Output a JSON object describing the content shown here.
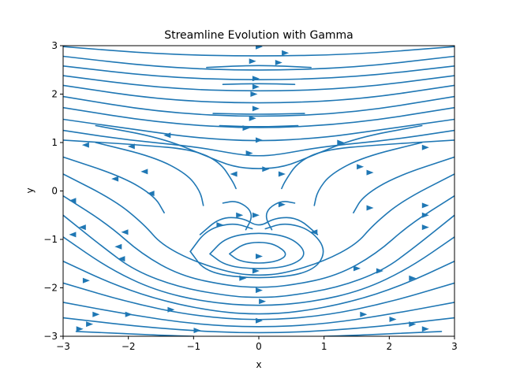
{
  "chart_data": {
    "type": "streamplot",
    "title": "Streamline Evolution with Gamma",
    "xlabel": "x",
    "ylabel": "y",
    "xlim": [
      -3,
      3
    ],
    "ylim": [
      -3,
      3
    ],
    "xticks": [
      -3,
      -2,
      -1,
      0,
      1,
      2,
      3
    ],
    "yticks": [
      -3,
      -2,
      -1,
      0,
      1,
      2,
      3
    ],
    "xtick_labels": [
      "−3",
      "−2",
      "−1",
      "0",
      "1",
      "2",
      "3"
    ],
    "ytick_labels": [
      "−3",
      "−2",
      "−1",
      "0",
      "1",
      "2",
      "3"
    ],
    "color": "#1f77b4",
    "grid": false,
    "field_description": "uniform rightward flow past a vortex near (0,-1.3)",
    "streamlines": [
      [
        [
          -3,
          2.98
        ],
        [
          -1.5,
          2.82
        ],
        [
          0,
          2.78
        ],
        [
          1.5,
          2.82
        ],
        [
          3,
          2.98
        ]
      ],
      [
        [
          -3,
          2.78
        ],
        [
          -1.5,
          2.55
        ],
        [
          0,
          2.48
        ],
        [
          1.5,
          2.55
        ],
        [
          3,
          2.78
        ]
      ],
      [
        [
          -3,
          2.58
        ],
        [
          -1.5,
          2.35
        ],
        [
          0,
          2.28
        ],
        [
          1.5,
          2.35
        ],
        [
          3,
          2.58
        ]
      ],
      [
        [
          -3,
          2.38
        ],
        [
          -1.5,
          2.12
        ],
        [
          0,
          2.05
        ],
        [
          1.5,
          2.12
        ],
        [
          3,
          2.38
        ]
      ],
      [
        [
          -3,
          2.18
        ],
        [
          -1.5,
          1.88
        ],
        [
          0,
          1.8
        ],
        [
          1.5,
          1.88
        ],
        [
          3,
          2.18
        ]
      ],
      [
        [
          -3,
          1.95
        ],
        [
          -1.5,
          1.62
        ],
        [
          0,
          1.52
        ],
        [
          1.5,
          1.62
        ],
        [
          3,
          1.95
        ]
      ],
      [
        [
          -3,
          1.72
        ],
        [
          -1.5,
          1.4
        ],
        [
          0,
          1.28
        ],
        [
          1.5,
          1.4
        ],
        [
          3,
          1.72
        ]
      ],
      [
        [
          -3,
          1.48
        ],
        [
          -1.8,
          1.25
        ],
        [
          -1,
          1.1
        ],
        [
          0,
          1.02
        ],
        [
          1,
          1.1
        ],
        [
          1.8,
          1.25
        ],
        [
          3,
          1.48
        ]
      ],
      [
        [
          -3,
          1.25
        ],
        [
          -2,
          1.05
        ],
        [
          -1,
          0.92
        ],
        [
          -0.3,
          0.75
        ],
        [
          0,
          0.72
        ],
        [
          0.3,
          0.75
        ],
        [
          1,
          0.92
        ],
        [
          2,
          1.05
        ],
        [
          3,
          1.25
        ]
      ],
      [
        [
          -2.5,
          1.35
        ],
        [
          -1.5,
          1.1
        ],
        [
          -0.8,
          0.72
        ],
        [
          -0.4,
          0.5
        ],
        [
          0,
          0.45
        ],
        [
          0.4,
          0.5
        ],
        [
          0.8,
          0.72
        ],
        [
          1.5,
          1.1
        ],
        [
          2.5,
          1.35
        ]
      ],
      [
        [
          -3,
          1.05
        ],
        [
          -1.8,
          0.95
        ],
        [
          -1.0,
          0.85
        ],
        [
          -0.6,
          0.6
        ],
        [
          -0.4,
          0.2
        ],
        [
          -0.35,
          0.05
        ]
      ],
      [
        [
          0.35,
          0.05
        ],
        [
          0.4,
          0.2
        ],
        [
          0.6,
          0.6
        ],
        [
          1.0,
          0.85
        ],
        [
          1.8,
          0.95
        ],
        [
          3,
          1.05
        ]
      ],
      [
        [
          -2.5,
          1.0
        ],
        [
          -1.6,
          0.7
        ],
        [
          -1.1,
          0.35
        ],
        [
          -0.9,
          0.0
        ],
        [
          -0.85,
          -0.3
        ]
      ],
      [
        [
          0.85,
          -0.3
        ],
        [
          0.9,
          0.0
        ],
        [
          1.1,
          0.35
        ],
        [
          1.6,
          0.7
        ],
        [
          2.5,
          1.0
        ]
      ],
      [
        [
          -3,
          0.7
        ],
        [
          -2.1,
          0.3
        ],
        [
          -1.6,
          -0.1
        ],
        [
          -1.45,
          -0.45
        ]
      ],
      [
        [
          1.45,
          -0.45
        ],
        [
          1.6,
          -0.1
        ],
        [
          2.1,
          0.3
        ],
        [
          3,
          0.7
        ]
      ],
      [
        [
          -3,
          0.35
        ],
        [
          -2.2,
          -0.2
        ],
        [
          -1.75,
          -0.7
        ],
        [
          -1.5,
          -1.1
        ],
        [
          -1.0,
          -1.45
        ],
        [
          -0.4,
          -1.7
        ],
        [
          0,
          -1.75
        ],
        [
          0.4,
          -1.7
        ],
        [
          1.0,
          -1.45
        ],
        [
          1.5,
          -1.1
        ],
        [
          1.75,
          -0.7
        ],
        [
          2.2,
          -0.2
        ],
        [
          3,
          0.35
        ]
      ],
      [
        [
          -3,
          -0.1
        ],
        [
          -2.3,
          -0.7
        ],
        [
          -1.8,
          -1.3
        ],
        [
          -1.2,
          -1.75
        ],
        [
          -0.5,
          -1.95
        ],
        [
          0,
          -2.0
        ],
        [
          0.5,
          -1.95
        ],
        [
          1.2,
          -1.75
        ],
        [
          1.8,
          -1.3
        ],
        [
          2.3,
          -0.7
        ],
        [
          3,
          -0.1
        ]
      ],
      [
        [
          -3,
          -0.5
        ],
        [
          -2.4,
          -1.15
        ],
        [
          -1.9,
          -1.65
        ],
        [
          -1.2,
          -2.0
        ],
        [
          -0.4,
          -2.18
        ],
        [
          0,
          -2.2
        ],
        [
          0.4,
          -2.18
        ],
        [
          1.2,
          -2.0
        ],
        [
          1.9,
          -1.65
        ],
        [
          2.4,
          -1.15
        ],
        [
          3,
          -0.5
        ]
      ],
      [
        [
          -3,
          -0.95
        ],
        [
          -2.3,
          -1.6
        ],
        [
          -1.6,
          -2.05
        ],
        [
          -0.8,
          -2.3
        ],
        [
          0,
          -2.38
        ],
        [
          0.8,
          -2.3
        ],
        [
          1.6,
          -2.05
        ],
        [
          2.3,
          -1.6
        ],
        [
          3,
          -0.95
        ]
      ],
      [
        [
          -3,
          -1.45
        ],
        [
          -2.2,
          -1.95
        ],
        [
          -1.4,
          -2.3
        ],
        [
          -0.6,
          -2.5
        ],
        [
          0,
          -2.55
        ],
        [
          0.6,
          -2.5
        ],
        [
          1.4,
          -2.3
        ],
        [
          2.2,
          -1.95
        ],
        [
          3,
          -1.45
        ]
      ],
      [
        [
          -3,
          -1.9
        ],
        [
          -2.0,
          -2.3
        ],
        [
          -1.0,
          -2.58
        ],
        [
          0,
          -2.68
        ],
        [
          1.0,
          -2.58
        ],
        [
          2.0,
          -2.3
        ],
        [
          3,
          -1.9
        ]
      ],
      [
        [
          -3,
          -2.3
        ],
        [
          -2.0,
          -2.55
        ],
        [
          -1.0,
          -2.75
        ],
        [
          0,
          -2.82
        ],
        [
          1.0,
          -2.75
        ],
        [
          2.0,
          -2.55
        ],
        [
          3,
          -2.3
        ]
      ],
      [
        [
          -3,
          -2.62
        ],
        [
          -1.5,
          -2.85
        ],
        [
          0,
          -2.95
        ],
        [
          1.5,
          -2.85
        ],
        [
          3,
          -2.62
        ]
      ],
      [
        [
          -2.8,
          -2.9
        ],
        [
          -1.5,
          -2.98
        ],
        [
          -1.0,
          -3.0
        ]
      ],
      [
        [
          1.0,
          -3.0
        ],
        [
          1.5,
          -2.98
        ],
        [
          2.8,
          -2.9
        ]
      ],
      [
        [
          -0.55,
          -0.25
        ],
        [
          -0.35,
          -0.2
        ],
        [
          -0.15,
          -0.35
        ],
        [
          -0.1,
          -0.55
        ],
        [
          -0.2,
          -0.8
        ]
      ],
      [
        [
          0.55,
          -0.25
        ],
        [
          0.35,
          -0.2
        ],
        [
          0.15,
          -0.35
        ],
        [
          0.1,
          -0.55
        ],
        [
          0.2,
          -0.8
        ]
      ],
      [
        [
          -0.9,
          -0.9
        ],
        [
          -0.6,
          -0.55
        ],
        [
          -0.25,
          -0.55
        ],
        [
          0,
          -0.75
        ],
        [
          0.25,
          -0.55
        ],
        [
          0.6,
          -0.55
        ],
        [
          0.9,
          -0.9
        ]
      ],
      [
        [
          -0.45,
          -1.3
        ],
        [
          -0.25,
          -1.1
        ],
        [
          0,
          -1.05
        ],
        [
          0.25,
          -1.1
        ],
        [
          0.45,
          -1.3
        ],
        [
          0.3,
          -1.45
        ],
        [
          0,
          -1.5
        ],
        [
          -0.3,
          -1.45
        ],
        [
          -0.45,
          -1.3
        ]
      ],
      [
        [
          -0.75,
          -1.3
        ],
        [
          -0.5,
          -0.95
        ],
        [
          0,
          -0.85
        ],
        [
          0.5,
          -0.95
        ],
        [
          0.75,
          -1.3
        ],
        [
          0.5,
          -1.55
        ],
        [
          0,
          -1.62
        ],
        [
          -0.5,
          -1.55
        ],
        [
          -0.75,
          -1.3
        ]
      ],
      [
        [
          -1.05,
          -1.25
        ],
        [
          -0.8,
          -0.8
        ],
        [
          -0.4,
          -0.65
        ],
        [
          -0.1,
          -0.78
        ]
      ],
      [
        [
          0.1,
          -0.78
        ],
        [
          0.4,
          -0.65
        ],
        [
          0.8,
          -0.8
        ],
        [
          1.05,
          -1.25
        ],
        [
          0.8,
          -1.7
        ],
        [
          0,
          -1.82
        ],
        [
          -0.8,
          -1.7
        ],
        [
          -1.05,
          -1.25
        ]
      ],
      [
        [
          -0.8,
          2.55
        ],
        [
          0,
          2.6
        ],
        [
          0.8,
          2.55
        ]
      ],
      [
        [
          -0.55,
          2.2
        ],
        [
          0,
          2.22
        ],
        [
          0.55,
          2.2
        ]
      ],
      [
        [
          -0.7,
          1.6
        ],
        [
          0,
          1.58
        ],
        [
          0.7,
          1.6
        ]
      ],
      [
        [
          -0.6,
          1.35
        ],
        [
          0,
          1.32
        ],
        [
          0.6,
          1.35
        ]
      ]
    ],
    "arrows": [
      [
        0.0,
        2.98,
        1
      ],
      [
        0.4,
        2.85,
        1
      ],
      [
        -0.1,
        2.68,
        1
      ],
      [
        -0.05,
        2.32,
        1
      ],
      [
        -0.05,
        2.15,
        1
      ],
      [
        -0.08,
        2.0,
        1
      ],
      [
        -0.05,
        1.7,
        1
      ],
      [
        -0.1,
        1.5,
        1
      ],
      [
        -0.2,
        1.3,
        1
      ],
      [
        0,
        1.05,
        1
      ],
      [
        -0.15,
        0.78,
        1
      ],
      [
        0.1,
        0.45,
        1
      ],
      [
        -0.38,
        0.35,
        -1
      ],
      [
        0.35,
        0.35,
        1
      ],
      [
        -1.4,
        1.15,
        -1
      ],
      [
        -1.95,
        0.92,
        -1
      ],
      [
        -2.65,
        0.95,
        -1
      ],
      [
        -1.75,
        0.4,
        -1
      ],
      [
        -2.2,
        0.25,
        -1
      ],
      [
        -1.65,
        -0.05,
        -1
      ],
      [
        -2.85,
        -0.2,
        -1
      ],
      [
        -2.7,
        -0.75,
        -1
      ],
      [
        -2.85,
        -0.9,
        -1
      ],
      [
        -2.05,
        -0.85,
        -1
      ],
      [
        -2.15,
        -1.15,
        -1
      ],
      [
        -2.1,
        -1.4,
        -1
      ],
      [
        -2.65,
        -1.85,
        1
      ],
      [
        -2.5,
        -2.55,
        1
      ],
      [
        -2.6,
        -2.75,
        1
      ],
      [
        -2.75,
        -2.85,
        1
      ],
      [
        -2.0,
        -2.55,
        1
      ],
      [
        -1.35,
        -2.45,
        1
      ],
      [
        -0.95,
        -2.88,
        1
      ],
      [
        0,
        -2.68,
        1
      ],
      [
        0.05,
        -2.28,
        1
      ],
      [
        0,
        -2.05,
        1
      ],
      [
        -0.25,
        -1.8,
        1
      ],
      [
        -0.05,
        -1.65,
        1
      ],
      [
        0,
        -1.35,
        1
      ],
      [
        -0.6,
        -0.7,
        1
      ],
      [
        -0.3,
        -0.5,
        1
      ],
      [
        -0.05,
        -0.5,
        1
      ],
      [
        0.35,
        -0.28,
        1
      ],
      [
        0.85,
        -0.85,
        -1
      ],
      [
        1.25,
        1.0,
        1
      ],
      [
        1.55,
        0.5,
        1
      ],
      [
        1.7,
        0.38,
        1
      ],
      [
        2.55,
        0.9,
        1
      ],
      [
        1.7,
        -0.35,
        1
      ],
      [
        1.5,
        -1.6,
        1
      ],
      [
        1.85,
        -1.65,
        1
      ],
      [
        2.35,
        -1.8,
        1
      ],
      [
        2.55,
        -0.3,
        1
      ],
      [
        2.55,
        -0.5,
        1
      ],
      [
        2.55,
        -0.75,
        1
      ],
      [
        1.6,
        -2.55,
        1
      ],
      [
        2.05,
        -2.65,
        1
      ],
      [
        2.35,
        -2.75,
        1
      ],
      [
        2.55,
        -2.85,
        1
      ],
      [
        0.3,
        2.65,
        1
      ]
    ]
  }
}
